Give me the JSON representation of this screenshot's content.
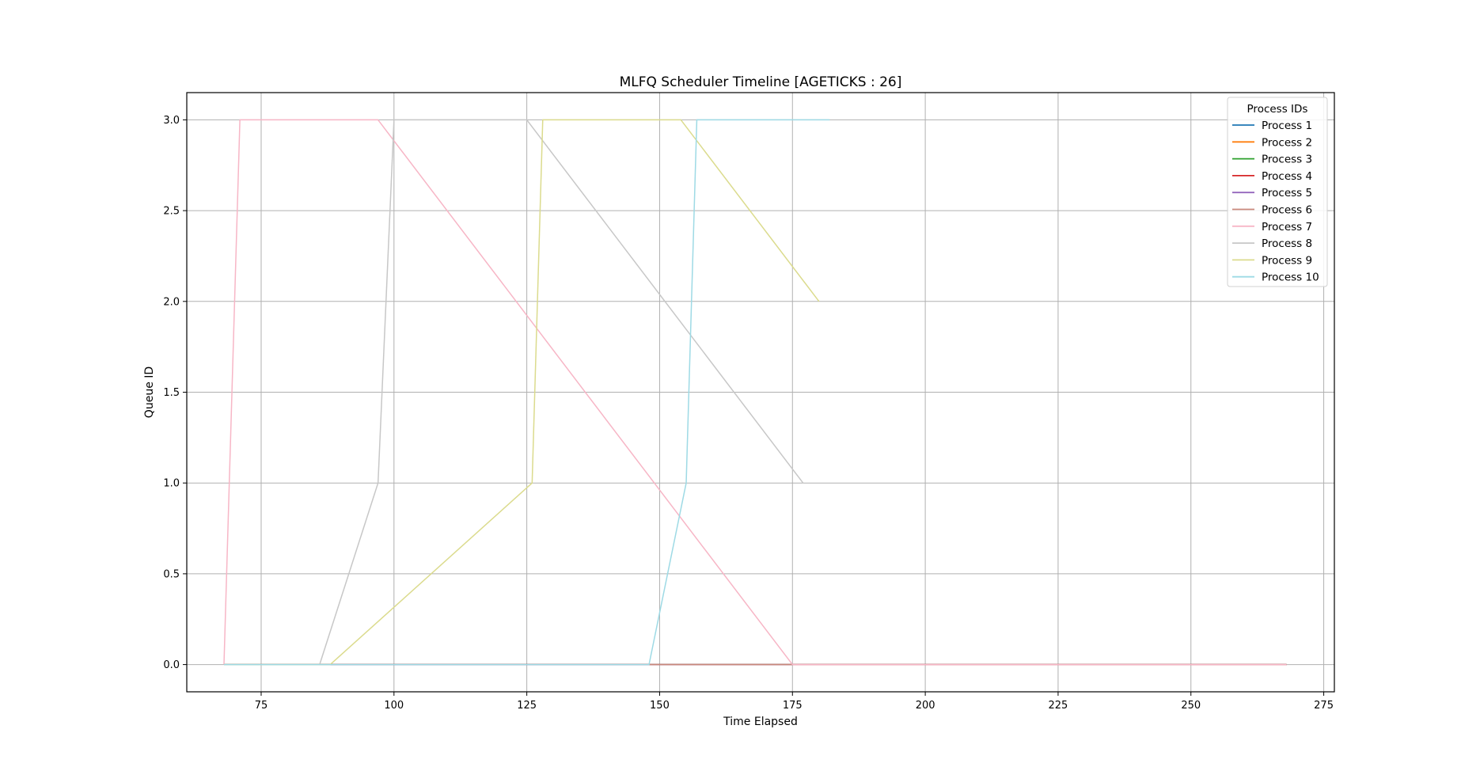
{
  "chart_data": {
    "type": "line",
    "title": "MLFQ Scheduler Timeline [AGETICKS : 26]",
    "xlabel": "Time Elapsed",
    "ylabel": "Queue ID",
    "xlim": [
      61,
      277
    ],
    "ylim": [
      -0.15,
      3.15
    ],
    "xticks": [
      75,
      100,
      125,
      150,
      175,
      200,
      225,
      250,
      275
    ],
    "yticks": [
      0.0,
      0.5,
      1.0,
      1.5,
      2.0,
      2.5,
      3.0
    ],
    "xtick_labels": [
      "75",
      "100",
      "125",
      "150",
      "175",
      "200",
      "225",
      "250",
      "275"
    ],
    "ytick_labels": [
      "0.0",
      "0.5",
      "1.0",
      "1.5",
      "2.0",
      "2.5",
      "3.0"
    ],
    "grid": true,
    "legend": {
      "title": "Process IDs",
      "placement": "top-right"
    },
    "series": [
      {
        "name": "Process 1",
        "color": "#1f77b4",
        "points": [
          [
            68,
            0
          ],
          [
            268,
            0
          ]
        ]
      },
      {
        "name": "Process 2",
        "color": "#ff7f0e",
        "points": [
          [
            68,
            0
          ],
          [
            268,
            0
          ]
        ]
      },
      {
        "name": "Process 3",
        "color": "#2ca02c",
        "points": [
          [
            68,
            0
          ],
          [
            268,
            0
          ]
        ]
      },
      {
        "name": "Process 4",
        "color": "#d62728",
        "points": [
          [
            68,
            0
          ],
          [
            268,
            0
          ]
        ]
      },
      {
        "name": "Process 5",
        "color": "#9467bd",
        "points": [
          [
            68,
            0
          ],
          [
            268,
            0
          ]
        ]
      },
      {
        "name": "Process 6",
        "color": "#c9897c",
        "points": [
          [
            148,
            0
          ],
          [
            268,
            0
          ]
        ]
      },
      {
        "name": "Process 7",
        "color": "#f7b6c6",
        "points": [
          [
            68,
            0
          ],
          [
            71,
            3
          ],
          [
            97,
            3
          ],
          [
            175,
            0
          ],
          [
            268,
            0
          ]
        ]
      },
      {
        "name": "Process 8",
        "color": "#c7c7c7",
        "points": [
          [
            68,
            0
          ],
          [
            86,
            0
          ],
          [
            97,
            1
          ],
          [
            100,
            3
          ],
          [
            125,
            3
          ],
          [
            177,
            1
          ]
        ]
      },
      {
        "name": "Process 9",
        "color": "#dbdb8d",
        "points": [
          [
            68,
            0
          ],
          [
            88,
            0
          ],
          [
            126,
            1
          ],
          [
            128,
            3
          ],
          [
            154,
            3
          ],
          [
            180,
            2
          ]
        ]
      },
      {
        "name": "Process 10",
        "color": "#9edae5",
        "points": [
          [
            68,
            0
          ],
          [
            148,
            0
          ],
          [
            155,
            1
          ],
          [
            157,
            3
          ],
          [
            182,
            3
          ]
        ]
      }
    ]
  }
}
